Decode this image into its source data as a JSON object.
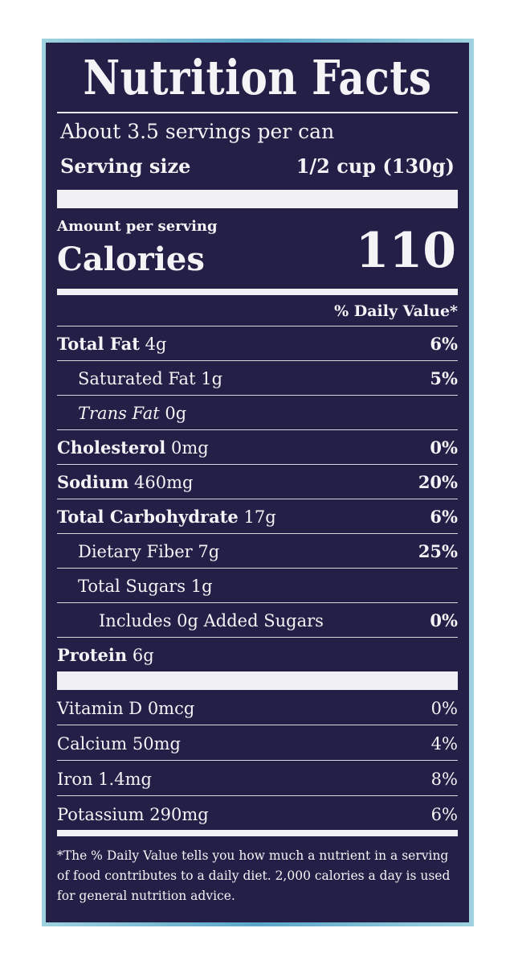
{
  "title": "Nutrition Facts",
  "servings": "About 3.5 servings per can",
  "serving_size": {
    "label": "Serving size",
    "value": "1/2 cup (130g)"
  },
  "amount_per_serving": "Amount per serving",
  "calories": {
    "label": "Calories",
    "value": "110"
  },
  "daily_value_header": "% Daily Value*",
  "nutrients": [
    {
      "name": "Total Fat",
      "amount": "4g",
      "dv": "6%",
      "bold": true,
      "indent": 0
    },
    {
      "name": "Saturated Fat",
      "amount": "1g",
      "dv": "5%",
      "bold": false,
      "indent": 1
    },
    {
      "name": "Trans Fat",
      "amount": "0g",
      "dv": "",
      "bold": false,
      "indent": 1,
      "italic": true
    },
    {
      "name": "Cholesterol",
      "amount": "0mg",
      "dv": "0%",
      "bold": true,
      "indent": 0
    },
    {
      "name": "Sodium",
      "amount": "460mg",
      "dv": "20%",
      "bold": true,
      "indent": 0
    },
    {
      "name": "Total Carbohydrate",
      "amount": "17g",
      "dv": "6%",
      "bold": true,
      "indent": 0
    },
    {
      "name": "Dietary Fiber",
      "amount": "7g",
      "dv": "25%",
      "bold": false,
      "indent": 1
    },
    {
      "name": "Total Sugars",
      "amount": "1g",
      "dv": "",
      "bold": false,
      "indent": 1
    },
    {
      "name": "Includes 0g Added Sugars",
      "amount": "",
      "dv": "0%",
      "bold": false,
      "indent": 2
    },
    {
      "name": "Protein",
      "amount": "6g",
      "dv": "",
      "bold": true,
      "indent": 0
    }
  ],
  "vitamins": [
    {
      "name": "Vitamin D 0mcg",
      "dv": "0%"
    },
    {
      "name": "Calcium 50mg",
      "dv": "4%"
    },
    {
      "name": "Iron 1.4mg",
      "dv": "8%"
    },
    {
      "name": "Potassium 290mg",
      "dv": "6%"
    }
  ],
  "footnote": "*The % Daily Value tells you how much a nutrient in a serving of food contributes to a daily diet. 2,000 calories a day is used for general nutrition advice.",
  "colors": {
    "panel": "#231f46",
    "text": "#f4f3f6",
    "border": "#9fd2e0"
  }
}
